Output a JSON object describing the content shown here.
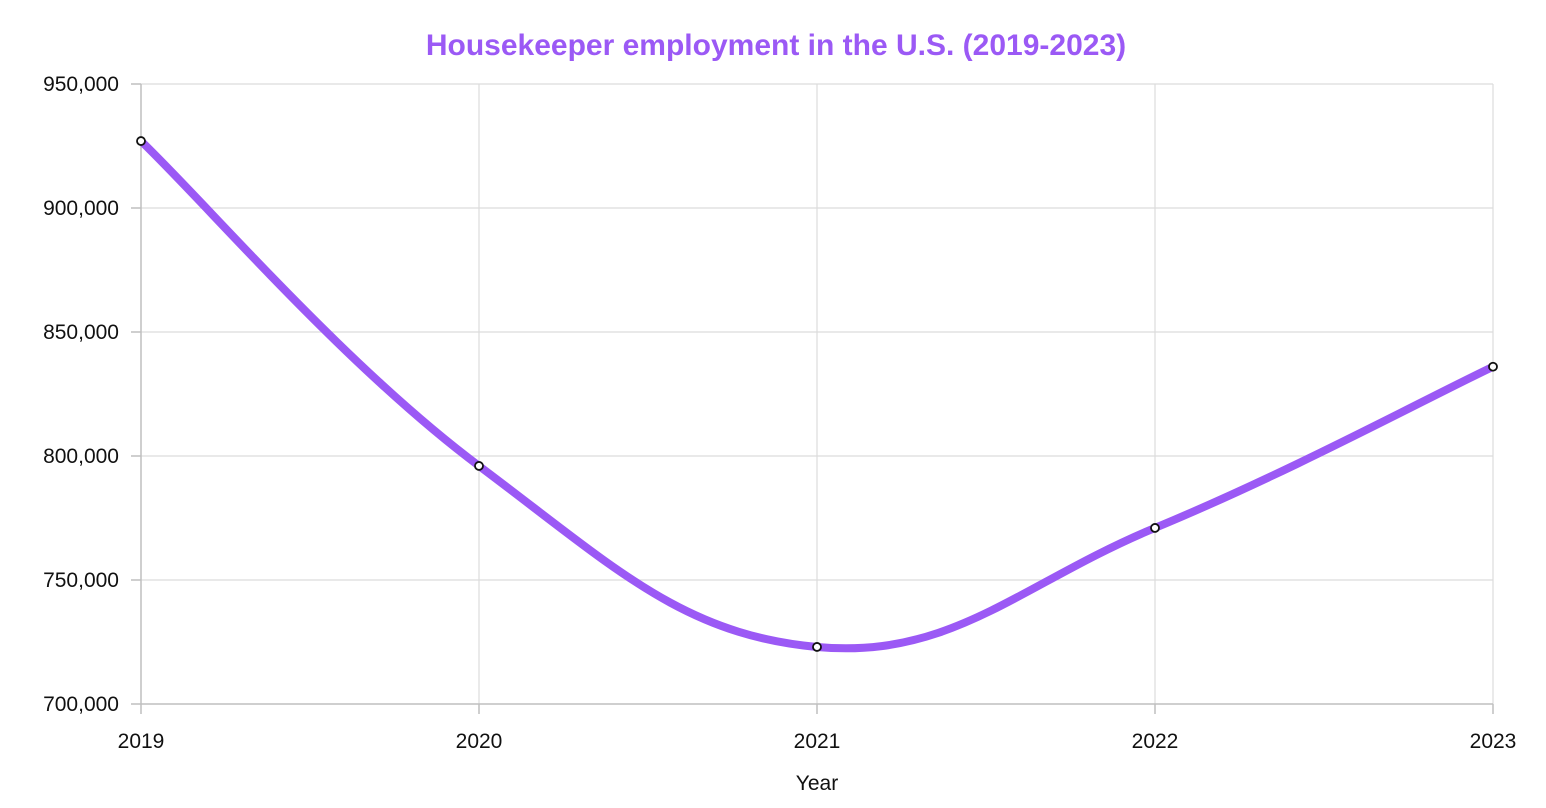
{
  "chart_data": {
    "type": "line",
    "title": "Housekeeper employment in the U.S. (2019-2023)",
    "xlabel": "Year",
    "ylabel": "",
    "categories": [
      "2019",
      "2020",
      "2021",
      "2022",
      "2023"
    ],
    "series": [
      {
        "values": [
          927000,
          796000,
          723000,
          771000,
          836000
        ],
        "color": "#9b59f5"
      }
    ],
    "ylim": [
      700000,
      950000
    ],
    "yticks": [
      700000,
      750000,
      800000,
      850000,
      900000,
      950000
    ],
    "ytick_labels": [
      "700,000",
      "750,000",
      "800,000",
      "850,000",
      "900,000",
      "950,000"
    ],
    "grid": true,
    "legend": "none",
    "title_color": "#9b59f5",
    "line_style": "smooth"
  }
}
